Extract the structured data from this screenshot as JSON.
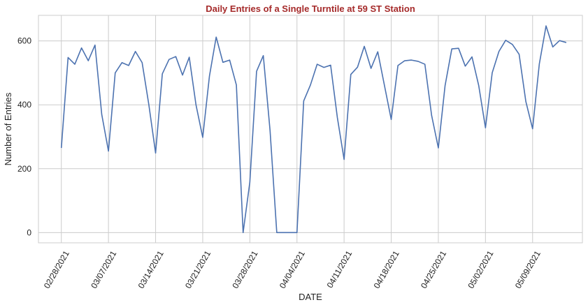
{
  "chart_data": {
    "type": "line",
    "title": "Daily Entries of a Single Turntile at 59 ST Station",
    "title_color": "#a52a2a",
    "xlabel": "DATE",
    "ylabel": "Number of Entries",
    "line_color": "#4c72b0",
    "grid": true,
    "xlim": [
      -3.4,
      77.4
    ],
    "ylim": [
      -32,
      680
    ],
    "yticks": [
      0,
      200,
      400,
      600
    ],
    "xticks": [
      {
        "day": 0,
        "label": "02/28/2021"
      },
      {
        "day": 7,
        "label": "03/07/2021"
      },
      {
        "day": 14,
        "label": "03/14/2021"
      },
      {
        "day": 21,
        "label": "03/21/2021"
      },
      {
        "day": 28,
        "label": "03/28/2021"
      },
      {
        "day": 35,
        "label": "04/04/2021"
      },
      {
        "day": 42,
        "label": "04/11/2021"
      },
      {
        "day": 49,
        "label": "04/18/2021"
      },
      {
        "day": 56,
        "label": "04/25/2021"
      },
      {
        "day": 63,
        "label": "05/02/2021"
      },
      {
        "day": 70,
        "label": "05/09/2021"
      }
    ],
    "series": [
      {
        "values": [
          265,
          548,
          527,
          578,
          538,
          587,
          370,
          255,
          500,
          532,
          523,
          567,
          532,
          400,
          249,
          497,
          542,
          551,
          493,
          549,
          400,
          298,
          490,
          612,
          533,
          540,
          462,
          0,
          158,
          505,
          554,
          320,
          0,
          0,
          0,
          0,
          412,
          462,
          527,
          517,
          524,
          360,
          229,
          495,
          518,
          583,
          514,
          566,
          460,
          354,
          523,
          538,
          540,
          536,
          527,
          367,
          265,
          460,
          575,
          577,
          521,
          550,
          460,
          328,
          500,
          567,
          602,
          589,
          558,
          410,
          325,
          528,
          647,
          581,
          601,
          595
        ]
      }
    ]
  }
}
